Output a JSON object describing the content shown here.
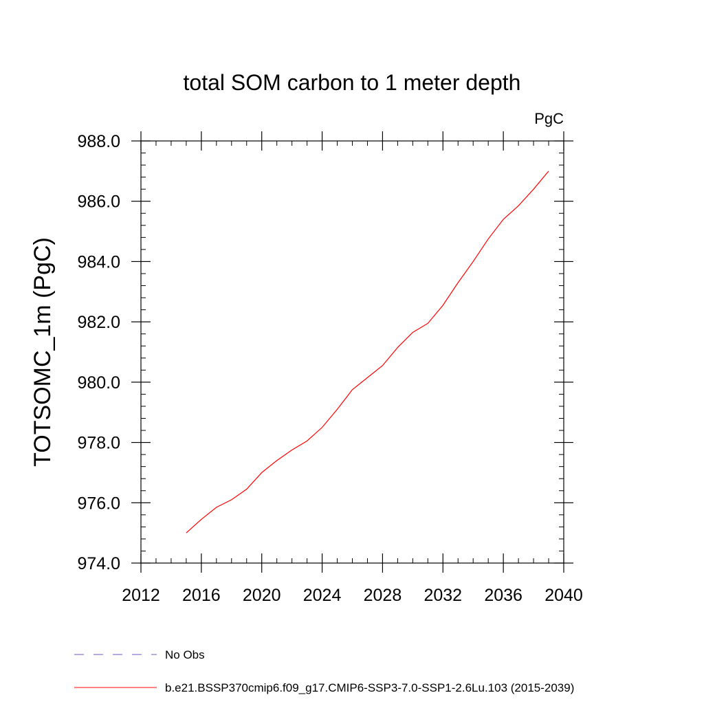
{
  "chart_data": {
    "type": "line",
    "title": "total SOM carbon to 1 meter depth",
    "units": "PgC",
    "xlabel": "",
    "ylabel": "TOTSOMC_1m  (PgC)",
    "xlim": [
      2012,
      2040
    ],
    "ylim": [
      974.0,
      988.0
    ],
    "xticks": [
      2012,
      2016,
      2020,
      2024,
      2028,
      2032,
      2036,
      2040
    ],
    "xtick_labels": [
      "2012",
      "2016",
      "2020",
      "2024",
      "2028",
      "2032",
      "2036",
      "2040"
    ],
    "yticks": [
      974,
      976,
      978,
      980,
      982,
      984,
      986,
      988
    ],
    "ytick_labels": [
      "974.0",
      "976.0",
      "978.0",
      "980.0",
      "982.0",
      "984.0",
      "986.0",
      "988.0"
    ],
    "grid": false,
    "legend_position": "bottom",
    "series": [
      {
        "name": "No Obs",
        "color": "#6a5acd",
        "dash": "dashed",
        "x": [],
        "values": []
      },
      {
        "name": "b.e21.BSSP370cmip6.f09_g17.CMIP6-SSP3-7.0-SSP1-2.6Lu.103 (2015-2039)",
        "color": "#ff0000",
        "dash": "solid",
        "x": [
          2015,
          2016,
          2017,
          2018,
          2019,
          2020,
          2021,
          2022,
          2023,
          2024,
          2025,
          2026,
          2027,
          2028,
          2029,
          2030,
          2031,
          2032,
          2033,
          2034,
          2035,
          2036,
          2037,
          2038,
          2039
        ],
        "values": [
          975.0,
          975.45,
          975.85,
          976.1,
          976.45,
          977.0,
          977.4,
          977.75,
          978.05,
          978.5,
          979.1,
          979.75,
          980.15,
          980.55,
          981.15,
          981.65,
          981.95,
          982.55,
          983.3,
          984.0,
          984.75,
          985.4,
          985.85,
          986.4,
          987.0
        ]
      }
    ]
  }
}
